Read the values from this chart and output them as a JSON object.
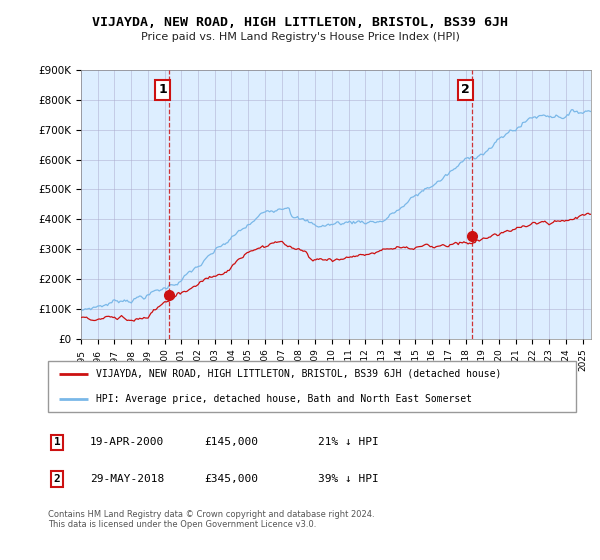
{
  "title": "VIJAYDA, NEW ROAD, HIGH LITTLETON, BRISTOL, BS39 6JH",
  "subtitle": "Price paid vs. HM Land Registry's House Price Index (HPI)",
  "ylabel_ticks": [
    "£0",
    "£100K",
    "£200K",
    "£300K",
    "£400K",
    "£500K",
    "£600K",
    "£700K",
    "£800K",
    "£900K"
  ],
  "ylim": [
    0,
    900000
  ],
  "xlim_start": 1995.0,
  "xlim_end": 2025.5,
  "sale1_x": 2000.29,
  "sale1_y": 145000,
  "sale2_x": 2018.41,
  "sale2_y": 345000,
  "sale1_label": "1",
  "sale2_label": "2",
  "legend_line1": "VIJAYDA, NEW ROAD, HIGH LITTLETON, BRISTOL, BS39 6JH (detached house)",
  "legend_line2": "HPI: Average price, detached house, Bath and North East Somerset",
  "footer": "Contains HM Land Registry data © Crown copyright and database right 2024.\nThis data is licensed under the Open Government Licence v3.0.",
  "hpi_color": "#7ab8e8",
  "sale_color": "#cc1111",
  "bg_color": "#ffffff",
  "chart_bg_color": "#ddeeff",
  "grid_color": "#aaaacc"
}
